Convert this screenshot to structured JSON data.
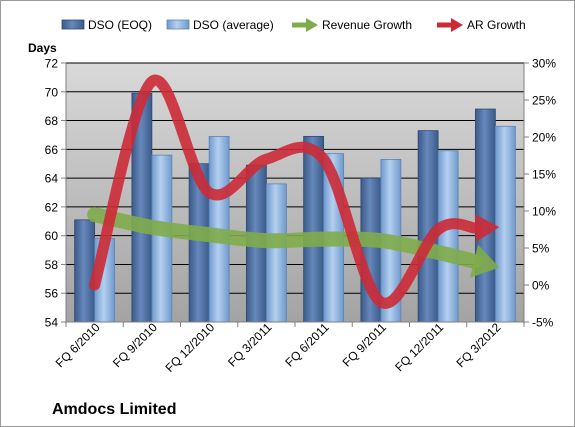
{
  "chart_data": {
    "type": "bar",
    "company": "Amdocs Limited",
    "y_left_label": "Days",
    "ylim_left": [
      54,
      72
    ],
    "yticks_left": [
      54,
      56,
      58,
      60,
      62,
      64,
      66,
      68,
      70,
      72
    ],
    "ylim_right": [
      -5,
      30
    ],
    "yticks_right": [
      "-5%",
      "0%",
      "5%",
      "10%",
      "15%",
      "20%",
      "25%",
      "30%"
    ],
    "yticks_right_values": [
      -5,
      0,
      5,
      10,
      15,
      20,
      25,
      30
    ],
    "categories": [
      "FQ 6/2010",
      "FQ 9/2010",
      "FQ 12/2010",
      "FQ 3/2011",
      "FQ 6/2011",
      "FQ 9/2011",
      "FQ 12/2011",
      "FQ 3/2012"
    ],
    "series": [
      {
        "name": "DSO (EOQ)",
        "axis": "left",
        "kind": "bar",
        "color": "#4f6f9e",
        "values": [
          61.1,
          69.9,
          65.0,
          64.9,
          66.9,
          64.0,
          67.3,
          68.8
        ]
      },
      {
        "name": "DSO (average)",
        "axis": "left",
        "kind": "bar",
        "color": "#8fb4e0",
        "values": [
          59.8,
          65.6,
          66.9,
          63.6,
          65.7,
          65.3,
          65.9,
          67.6
        ]
      },
      {
        "name": "Revenue Growth",
        "axis": "right",
        "kind": "arrow",
        "color": "#7fac4a",
        "values": [
          9.5,
          7.8,
          6.8,
          6.0,
          6.2,
          6.0,
          4.4,
          2.5
        ]
      },
      {
        "name": "AR Growth",
        "axis": "right",
        "kind": "arrow",
        "color": "#cc2a36",
        "values": [
          0.0,
          27.5,
          12.5,
          17.0,
          17.0,
          -2.3,
          7.5,
          7.8
        ]
      }
    ],
    "grid": true,
    "legend_position": "top"
  }
}
